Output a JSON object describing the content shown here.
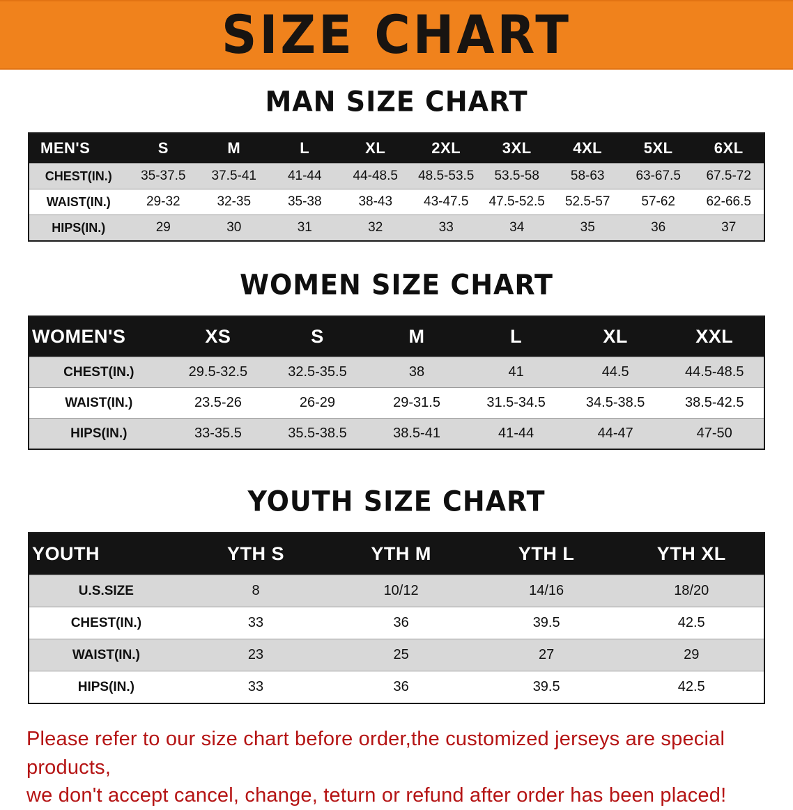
{
  "banner": {
    "title": "SIZE CHART",
    "bg_color": "#f0821c",
    "text_color": "#181411"
  },
  "sections": [
    {
      "id": "men",
      "heading": "MAN SIZE CHART",
      "table": {
        "header": [
          "MEN'S",
          "S",
          "M",
          "L",
          "XL",
          "2XL",
          "3XL",
          "4XL",
          "5XL",
          "6XL"
        ],
        "rows": [
          [
            "CHEST(IN.)",
            "35-37.5",
            "37.5-41",
            "41-44",
            "44-48.5",
            "48.5-53.5",
            "53.5-58",
            "58-63",
            "63-67.5",
            "67.5-72"
          ],
          [
            "WAIST(IN.)",
            "29-32",
            "32-35",
            "35-38",
            "38-43",
            "43-47.5",
            "47.5-52.5",
            "52.5-57",
            "57-62",
            "62-66.5"
          ],
          [
            "HIPS(IN.)",
            "29",
            "30",
            "31",
            "32",
            "33",
            "34",
            "35",
            "36",
            "37"
          ]
        ]
      }
    },
    {
      "id": "women",
      "heading": "WOMEN SIZE CHART",
      "table": {
        "header": [
          "WOMEN'S",
          "XS",
          "S",
          "M",
          "L",
          "XL",
          "XXL"
        ],
        "rows": [
          [
            "CHEST(IN.)",
            "29.5-32.5",
            "32.5-35.5",
            "38",
            "41",
            "44.5",
            "44.5-48.5"
          ],
          [
            "WAIST(IN.)",
            "23.5-26",
            "26-29",
            "29-31.5",
            "31.5-34.5",
            "34.5-38.5",
            "38.5-42.5"
          ],
          [
            "HIPS(IN.)",
            "33-35.5",
            "35.5-38.5",
            "38.5-41",
            "41-44",
            "44-47",
            "47-50"
          ]
        ]
      }
    },
    {
      "id": "youth",
      "heading": "YOUTH SIZE CHART",
      "table": {
        "header": [
          "YOUTH",
          "YTH S",
          "YTH M",
          "YTH L",
          "YTH XL"
        ],
        "rows": [
          [
            "U.S.SIZE",
            "8",
            "10/12",
            "14/16",
            "18/20"
          ],
          [
            "CHEST(IN.)",
            "33",
            "36",
            "39.5",
            "42.5"
          ],
          [
            "WAIST(IN.)",
            "23",
            "25",
            "27",
            "29"
          ],
          [
            "HIPS(IN.)",
            "33",
            "36",
            "39.5",
            "42.5"
          ]
        ]
      }
    }
  ],
  "footer": {
    "line1": "Please refer to our size chart before order,the customized jerseys are special products,",
    "line2": "we don't accept cancel, change, teturn or refund after order has been placed!",
    "text_color": "#b51414"
  },
  "colors": {
    "header_row_bg": "#141414",
    "header_row_text": "#ffffff",
    "shaded_row_bg": "#d8d8d8",
    "plain_row_bg": "#ffffff"
  }
}
